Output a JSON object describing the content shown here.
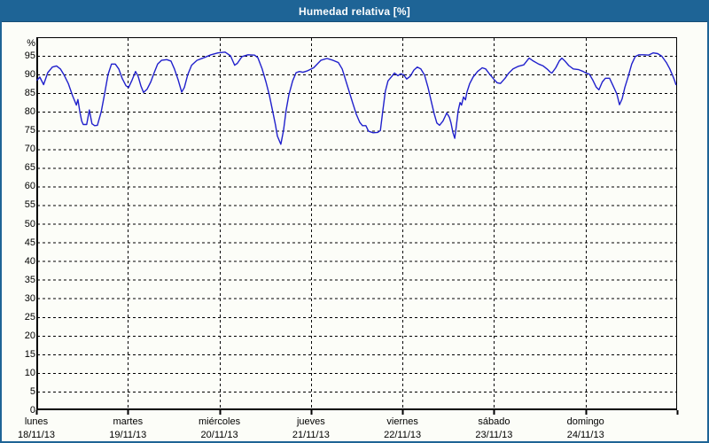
{
  "window": {
    "title": "Humedad relativa [%]"
  },
  "theme": {
    "titlebar_bg": "#1E6496",
    "titlebar_text": "#FFFFFF",
    "panel_bg": "#FCFDF8",
    "panel_border": "#1E6496",
    "plot_border": "#000000",
    "grid_color": "#000000",
    "line_color": "#2020CC",
    "label_color": "#000000"
  },
  "chart_data": {
    "type": "line",
    "title": "Humedad relativa [%]",
    "xlabel": "",
    "ylabel": "%",
    "ylim": [
      0,
      100
    ],
    "yticks": [
      0,
      5,
      10,
      15,
      20,
      25,
      30,
      35,
      40,
      45,
      50,
      55,
      60,
      65,
      70,
      75,
      80,
      85,
      90,
      95
    ],
    "grid": "dashed black, horizontal every 5%, vertical at day boundaries",
    "legend": "none",
    "x_total_hours": 168,
    "x_days": [
      {
        "name": "lunes",
        "date": "18/11/13"
      },
      {
        "name": "martes",
        "date": "19/11/13"
      },
      {
        "name": "miércoles",
        "date": "20/11/13"
      },
      {
        "name": "jueves",
        "date": "21/11/13"
      },
      {
        "name": "viernes",
        "date": "22/11/13"
      },
      {
        "name": "sábado",
        "date": "23/11/13"
      },
      {
        "name": "domingo",
        "date": "24/11/13"
      }
    ],
    "series": [
      {
        "name": "Humedad relativa",
        "unit": "%",
        "points": [
          [
            0.2,
            88.5
          ],
          [
            0.9,
            89.3
          ],
          [
            1.9,
            87.3
          ],
          [
            3,
            90.5
          ],
          [
            4.2,
            92
          ],
          [
            5.3,
            92.3
          ],
          [
            6.3,
            91.5
          ],
          [
            7.2,
            90
          ],
          [
            8.4,
            87.5
          ],
          [
            9.5,
            84.3
          ],
          [
            10.5,
            81.8
          ],
          [
            10.9,
            83.3
          ],
          [
            11.4,
            80
          ],
          [
            11.9,
            77.5
          ],
          [
            12.3,
            76.6
          ],
          [
            13.2,
            76.6
          ],
          [
            13.9,
            80.5
          ],
          [
            14.6,
            76.8
          ],
          [
            15.3,
            76.3
          ],
          [
            16,
            76.4
          ],
          [
            17,
            80
          ],
          [
            17.9,
            84.8
          ],
          [
            18.8,
            90
          ],
          [
            19.7,
            92.8
          ],
          [
            20.7,
            92.8
          ],
          [
            21.6,
            91.5
          ],
          [
            22.5,
            89
          ],
          [
            23.5,
            87
          ],
          [
            24.2,
            86.5
          ],
          [
            25.1,
            88.5
          ],
          [
            26,
            90.8
          ],
          [
            26.7,
            89.5
          ],
          [
            27.4,
            87
          ],
          [
            28.1,
            85.2
          ],
          [
            29,
            86
          ],
          [
            30,
            88
          ],
          [
            30.9,
            90.5
          ],
          [
            31.8,
            92.8
          ],
          [
            32.8,
            93.8
          ],
          [
            34.2,
            94
          ],
          [
            35.3,
            93.6
          ],
          [
            36.2,
            91.5
          ],
          [
            37.2,
            88.5
          ],
          [
            38.1,
            85.3
          ],
          [
            38.8,
            86.5
          ],
          [
            39.7,
            90
          ],
          [
            40.7,
            92.5
          ],
          [
            42.1,
            93.8
          ],
          [
            43.9,
            94.5
          ],
          [
            45.8,
            95.3
          ],
          [
            47.6,
            95.8
          ],
          [
            49.5,
            96
          ],
          [
            50.9,
            95
          ],
          [
            52,
            92.5
          ],
          [
            52.7,
            93
          ],
          [
            53.9,
            94.8
          ],
          [
            55.5,
            95.3
          ],
          [
            57.2,
            95.2
          ],
          [
            58.1,
            94.5
          ],
          [
            59.2,
            91.5
          ],
          [
            60.2,
            88
          ],
          [
            61.1,
            84.5
          ],
          [
            62,
            80
          ],
          [
            62.7,
            76.5
          ],
          [
            63.2,
            73.5
          ],
          [
            63.7,
            72.3
          ],
          [
            64.1,
            71.3
          ],
          [
            64.8,
            75
          ],
          [
            65.5,
            80.5
          ],
          [
            66.2,
            84.5
          ],
          [
            67.2,
            88.3
          ],
          [
            68.1,
            90.5
          ],
          [
            69,
            90.8
          ],
          [
            69.9,
            90.6
          ],
          [
            71.1,
            91
          ],
          [
            72.7,
            91.8
          ],
          [
            74.6,
            93.8
          ],
          [
            76.2,
            94.3
          ],
          [
            77.8,
            93.8
          ],
          [
            79.2,
            93.2
          ],
          [
            80.2,
            91.5
          ],
          [
            81.1,
            88.5
          ],
          [
            82,
            85.5
          ],
          [
            82.9,
            82.5
          ],
          [
            83.9,
            79.3
          ],
          [
            84.8,
            77.2
          ],
          [
            85.5,
            76.3
          ],
          [
            86.4,
            76.3
          ],
          [
            87.1,
            74.8
          ],
          [
            88.3,
            74.4
          ],
          [
            89.5,
            74.5
          ],
          [
            90.2,
            75
          ],
          [
            90.8,
            80
          ],
          [
            91.5,
            85.5
          ],
          [
            92.2,
            88.3
          ],
          [
            93.2,
            89.5
          ],
          [
            93.9,
            90.4
          ],
          [
            94.8,
            89.7
          ],
          [
            95.5,
            90.2
          ],
          [
            96.2,
            90
          ],
          [
            97.1,
            88.8
          ],
          [
            98,
            89.5
          ],
          [
            99,
            91.2
          ],
          [
            99.9,
            92
          ],
          [
            100.8,
            91.5
          ],
          [
            101.8,
            89.8
          ],
          [
            102.7,
            86.5
          ],
          [
            103.6,
            82.5
          ],
          [
            104.3,
            79.5
          ],
          [
            105,
            77
          ],
          [
            105.7,
            76.4
          ],
          [
            106.6,
            77.5
          ],
          [
            107.6,
            79.7
          ],
          [
            108.3,
            78.5
          ],
          [
            108.7,
            77.1
          ],
          [
            109.2,
            74.5
          ],
          [
            109.7,
            72.9
          ],
          [
            110.1,
            76
          ],
          [
            110.6,
            80.3
          ],
          [
            111.1,
            82.5
          ],
          [
            111.5,
            81.8
          ],
          [
            112,
            84
          ],
          [
            112.5,
            83.2
          ],
          [
            112.9,
            85.3
          ],
          [
            113.6,
            87.5
          ],
          [
            114.5,
            89.3
          ],
          [
            115.7,
            90.8
          ],
          [
            116.9,
            91.8
          ],
          [
            117.8,
            91.5
          ],
          [
            118.7,
            90.3
          ],
          [
            119.9,
            88.8
          ],
          [
            120.8,
            87.8
          ],
          [
            121.7,
            87.6
          ],
          [
            122.9,
            89
          ],
          [
            123.8,
            90.3
          ],
          [
            125,
            91.5
          ],
          [
            126.4,
            92.2
          ],
          [
            127.8,
            92.6
          ],
          [
            129.2,
            94.4
          ],
          [
            130.3,
            93.6
          ],
          [
            131.7,
            92.8
          ],
          [
            132.9,
            92.3
          ],
          [
            134.1,
            91.3
          ],
          [
            134.8,
            90.6
          ],
          [
            135.2,
            90.4
          ],
          [
            136.2,
            91.8
          ],
          [
            137.1,
            93.6
          ],
          [
            137.8,
            94.4
          ],
          [
            138.7,
            93.5
          ],
          [
            139.6,
            92.4
          ],
          [
            140.8,
            91.5
          ],
          [
            142.2,
            91.3
          ],
          [
            143.4,
            90.8
          ],
          [
            144.1,
            90.4
          ],
          [
            145,
            90.1
          ],
          [
            145.9,
            88.5
          ],
          [
            146.8,
            86.6
          ],
          [
            147.5,
            85.9
          ],
          [
            148.4,
            88
          ],
          [
            149.2,
            89
          ],
          [
            150.3,
            89
          ],
          [
            151.2,
            87
          ],
          [
            152.2,
            84.8
          ],
          [
            152.9,
            81.9
          ],
          [
            153.6,
            83.5
          ],
          [
            154.3,
            86.5
          ],
          [
            155.2,
            89.5
          ],
          [
            156.1,
            92.8
          ],
          [
            157,
            94.8
          ],
          [
            158,
            95.3
          ],
          [
            159.4,
            95.3
          ],
          [
            160.5,
            95.2
          ],
          [
            161.7,
            95.8
          ],
          [
            162.9,
            95.6
          ],
          [
            164,
            94.9
          ],
          [
            165.2,
            93.2
          ],
          [
            166.1,
            91.5
          ],
          [
            166.8,
            89.8
          ],
          [
            167.3,
            88.5
          ],
          [
            167.7,
            87.3
          ]
        ]
      }
    ]
  }
}
